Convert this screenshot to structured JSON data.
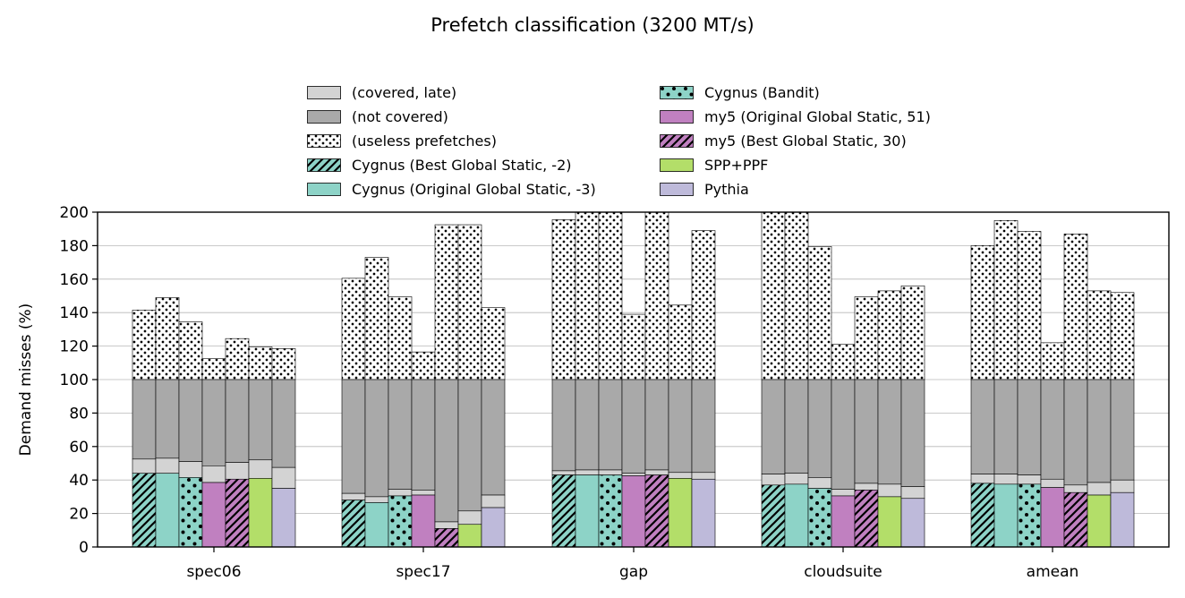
{
  "chart_data": {
    "type": "bar",
    "stacked": true,
    "title": "Prefetch classification (3200 MT/s)",
    "xlabel": "",
    "ylabel": "Demand misses (%)",
    "ylim": [
      0,
      200
    ],
    "yticks": [
      0,
      20,
      40,
      60,
      80,
      100,
      120,
      140,
      160,
      180,
      200
    ],
    "grid": "horizontal",
    "legend_position": "top-center",
    "categories": [
      "spec06",
      "spec17",
      "gap",
      "cloudsuite",
      "amean"
    ],
    "segment_legend": [
      {
        "name": "(covered, late)",
        "color": "#d3d3d3",
        "pattern": "none"
      },
      {
        "name": "(not covered)",
        "color": "#a9a9a9",
        "pattern": "none"
      },
      {
        "name": "(useless prefetches)",
        "color": "#ffffff",
        "pattern": "dots"
      }
    ],
    "series": [
      {
        "name": "Cygnus (Best Global Static, -2)",
        "color": "#8dd3c7",
        "pattern": "hatch",
        "covered": [
          44,
          28,
          43,
          37,
          38
        ],
        "covered_late_top": [
          52.5,
          32,
          45.5,
          43.5,
          43.5
        ],
        "total_top": [
          141.5,
          160.5,
          195.5,
          200,
          180
        ]
      },
      {
        "name": "Cygnus (Original Global Static, -3)",
        "color": "#8dd3c7",
        "pattern": "none",
        "covered": [
          44,
          26.5,
          43,
          37.5,
          37.5
        ],
        "covered_late_top": [
          53,
          30,
          46,
          44,
          43.5
        ],
        "total_top": [
          149,
          173,
          200,
          200,
          195
        ]
      },
      {
        "name": "Cygnus (Bandit)",
        "color": "#8dd3c7",
        "pattern": "bigdots",
        "covered": [
          41.5,
          30.5,
          43,
          35,
          37.5
        ],
        "covered_late_top": [
          51,
          34.5,
          46,
          41.5,
          43
        ],
        "total_top": [
          134.5,
          149.5,
          200,
          179.5,
          188.5
        ]
      },
      {
        "name": "my5 (Original Global Static, 51)",
        "color": "#c080c0",
        "pattern": "none",
        "covered": [
          38.5,
          31,
          42.5,
          30.5,
          35.5
        ],
        "covered_late_top": [
          48.5,
          34,
          44,
          34.5,
          40.5
        ],
        "total_top": [
          112.5,
          116.5,
          139,
          121,
          122
        ]
      },
      {
        "name": "my5 (Best Global Static, 30)",
        "color": "#c080c0",
        "pattern": "hatch",
        "covered": [
          40.5,
          11,
          43,
          34,
          32.5
        ],
        "covered_late_top": [
          50.5,
          15,
          46,
          38,
          37
        ],
        "total_top": [
          124.5,
          192.5,
          200,
          149.5,
          187
        ]
      },
      {
        "name": "SPP+PPF",
        "color": "#b3de69",
        "pattern": "none",
        "covered": [
          41,
          13.5,
          41,
          30,
          31
        ],
        "covered_late_top": [
          52,
          21.5,
          44.5,
          37.5,
          38.5
        ],
        "total_top": [
          119.5,
          192.5,
          144.5,
          153,
          153
        ]
      },
      {
        "name": "Pythia",
        "color": "#bebada",
        "pattern": "none",
        "covered": [
          35,
          23.5,
          40.5,
          29,
          32.5
        ],
        "covered_late_top": [
          47.5,
          31,
          44.5,
          36,
          40
        ],
        "total_top": [
          118.5,
          143,
          189,
          156,
          152
        ]
      }
    ]
  }
}
